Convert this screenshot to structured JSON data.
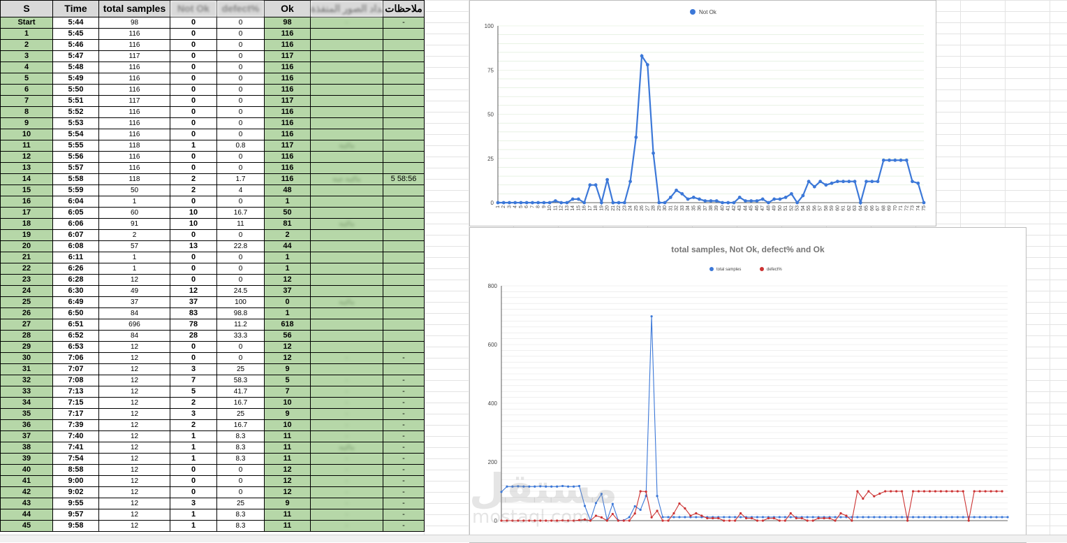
{
  "sheet": {
    "headers": [
      "S",
      "Time",
      "total samples",
      "Not Ok",
      "defect%",
      "Ok",
      "أعداد الصور المنفذة",
      "ملاحظات"
    ],
    "rows": [
      [
        "Start",
        "5:44",
        "98",
        "0",
        "0",
        "98",
        "-",
        "-"
      ],
      [
        "1",
        "5:45",
        "116",
        "0",
        "0",
        "116",
        "",
        ""
      ],
      [
        "2",
        "5:46",
        "116",
        "0",
        "0",
        "116",
        "",
        ""
      ],
      [
        "3",
        "5:47",
        "117",
        "0",
        "0",
        "117",
        "",
        ""
      ],
      [
        "4",
        "5:48",
        "116",
        "0",
        "0",
        "116",
        "",
        ""
      ],
      [
        "5",
        "5:49",
        "116",
        "0",
        "0",
        "116",
        "",
        ""
      ],
      [
        "6",
        "5:50",
        "116",
        "0",
        "0",
        "116",
        "",
        ""
      ],
      [
        "7",
        "5:51",
        "117",
        "0",
        "0",
        "117",
        "",
        ""
      ],
      [
        "8",
        "5:52",
        "116",
        "0",
        "0",
        "116",
        "",
        ""
      ],
      [
        "9",
        "5:53",
        "116",
        "0",
        "0",
        "116",
        "",
        ""
      ],
      [
        "10",
        "5:54",
        "116",
        "0",
        "0",
        "116",
        "",
        ""
      ],
      [
        "11",
        "5:55",
        "118",
        "1",
        "0.8",
        "117",
        "ماكينة",
        ""
      ],
      [
        "12",
        "5:56",
        "116",
        "0",
        "0",
        "116",
        "",
        ""
      ],
      [
        "13",
        "5:57",
        "116",
        "0",
        "0",
        "116",
        "",
        ""
      ],
      [
        "14",
        "5:58",
        "118",
        "2",
        "1.7",
        "116",
        "ماكينة عينة",
        "5 58:56"
      ],
      [
        "15",
        "5:59",
        "50",
        "2",
        "4",
        "48",
        "",
        ""
      ],
      [
        "16",
        "6:04",
        "1",
        "0",
        "0",
        "1",
        "",
        ""
      ],
      [
        "17",
        "6:05",
        "60",
        "10",
        "16.7",
        "50",
        "",
        ""
      ],
      [
        "18",
        "6:06",
        "91",
        "10",
        "11",
        "81",
        "ماكينة",
        ""
      ],
      [
        "19",
        "6:07",
        "2",
        "0",
        "0",
        "2",
        "",
        ""
      ],
      [
        "20",
        "6:08",
        "57",
        "13",
        "22.8",
        "44",
        "",
        ""
      ],
      [
        "21",
        "6:11",
        "1",
        "0",
        "0",
        "1",
        "",
        ""
      ],
      [
        "22",
        "6:26",
        "1",
        "0",
        "0",
        "1",
        "",
        ""
      ],
      [
        "23",
        "6:28",
        "12",
        "0",
        "0",
        "12",
        "",
        ""
      ],
      [
        "24",
        "6:30",
        "49",
        "12",
        "24.5",
        "37",
        "",
        ""
      ],
      [
        "25",
        "6:49",
        "37",
        "37",
        "100",
        "0",
        "ماكينة",
        ""
      ],
      [
        "26",
        "6:50",
        "84",
        "83",
        "98.8",
        "1",
        "",
        ""
      ],
      [
        "27",
        "6:51",
        "696",
        "78",
        "11.2",
        "618",
        "",
        ""
      ],
      [
        "28",
        "6:52",
        "84",
        "28",
        "33.3",
        "56",
        "",
        ""
      ],
      [
        "29",
        "6:53",
        "12",
        "0",
        "0",
        "12",
        "",
        ""
      ],
      [
        "30",
        "7:06",
        "12",
        "0",
        "0",
        "12",
        "-",
        "-"
      ],
      [
        "31",
        "7:07",
        "12",
        "3",
        "25",
        "9",
        "",
        ""
      ],
      [
        "32",
        "7:08",
        "12",
        "7",
        "58.3",
        "5",
        "-",
        "-"
      ],
      [
        "33",
        "7:13",
        "12",
        "5",
        "41.7",
        "7",
        "-",
        "-"
      ],
      [
        "34",
        "7:15",
        "12",
        "2",
        "16.7",
        "10",
        "-",
        "-"
      ],
      [
        "35",
        "7:17",
        "12",
        "3",
        "25",
        "9",
        "-",
        "-"
      ],
      [
        "36",
        "7:39",
        "12",
        "2",
        "16.7",
        "10",
        "-",
        "-"
      ],
      [
        "37",
        "7:40",
        "12",
        "1",
        "8.3",
        "11",
        "-",
        "-"
      ],
      [
        "38",
        "7:41",
        "12",
        "1",
        "8.3",
        "11",
        "ماكينة",
        "-"
      ],
      [
        "39",
        "7:54",
        "12",
        "1",
        "8.3",
        "11",
        "-",
        "-"
      ],
      [
        "40",
        "8:58",
        "12",
        "0",
        "0",
        "12",
        "-",
        "-"
      ],
      [
        "41",
        "9:00",
        "12",
        "0",
        "0",
        "12",
        "-",
        "-"
      ],
      [
        "42",
        "9:02",
        "12",
        "0",
        "0",
        "12",
        "-",
        "-"
      ],
      [
        "43",
        "9:55",
        "12",
        "3",
        "25",
        "9",
        "-",
        "-"
      ],
      [
        "44",
        "9:57",
        "12",
        "1",
        "8.3",
        "11",
        "-",
        "-"
      ],
      [
        "45",
        "9:58",
        "12",
        "1",
        "8.3",
        "11",
        "-",
        "-"
      ]
    ]
  },
  "chart_data": [
    {
      "type": "line",
      "title": "",
      "legend": [
        "Not Ok"
      ],
      "legend_position": "top",
      "ylim": [
        0,
        100
      ],
      "yticks": [
        0,
        25,
        50,
        75,
        100
      ],
      "x": [
        1,
        2,
        3,
        4,
        5,
        6,
        7,
        8,
        9,
        10,
        11,
        12,
        13,
        14,
        15,
        16,
        17,
        18,
        19,
        20,
        21,
        22,
        23,
        24,
        25,
        26,
        27,
        28,
        29,
        30,
        31,
        32,
        33,
        34,
        35,
        36,
        37,
        38,
        39,
        40,
        41,
        42,
        43,
        44,
        45,
        46,
        47,
        48,
        49,
        50,
        51,
        52,
        53,
        54,
        55,
        56,
        57,
        58,
        59,
        60,
        61,
        62,
        63,
        64,
        65,
        66,
        67,
        68,
        69,
        70,
        71,
        72,
        73,
        74,
        75
      ],
      "series": [
        {
          "name": "Not Ok",
          "color": "#3c78d8",
          "values": [
            0,
            0,
            0,
            0,
            0,
            0,
            0,
            0,
            0,
            0,
            1,
            0,
            0,
            2,
            2,
            0,
            10,
            10,
            0,
            13,
            0,
            0,
            0,
            12,
            37,
            83,
            78,
            28,
            0,
            0,
            3,
            7,
            5,
            2,
            3,
            2,
            1,
            1,
            1,
            0,
            0,
            0,
            3,
            1,
            1,
            1,
            2,
            0,
            2,
            2,
            3,
            5,
            0,
            4,
            12,
            9,
            12,
            10,
            11,
            12,
            12,
            12,
            12,
            0,
            12,
            12,
            12,
            24,
            24,
            24,
            24,
            24,
            12,
            11,
            0
          ]
        }
      ],
      "grid": true
    },
    {
      "type": "line",
      "title": "total samples, Not Ok, defect% and Ok",
      "legend": [
        "total samples",
        "defect%"
      ],
      "legend_position": "top",
      "ylim": [
        0,
        800
      ],
      "yticks": [
        0,
        200,
        400,
        600,
        800
      ],
      "series": [
        {
          "name": "total samples",
          "color": "#3c78d8",
          "values": [
            98,
            116,
            116,
            117,
            116,
            116,
            116,
            117,
            116,
            116,
            116,
            118,
            116,
            116,
            118,
            50,
            1,
            60,
            91,
            2,
            57,
            1,
            1,
            12,
            49,
            37,
            84,
            696,
            84,
            12,
            12,
            12,
            12,
            12,
            12,
            12,
            12,
            12,
            12,
            12,
            12,
            12,
            12,
            12,
            12,
            12,
            12,
            12,
            12,
            12,
            12,
            12,
            12,
            12,
            12,
            12,
            12,
            12,
            12,
            12,
            12,
            12,
            12,
            12,
            12,
            12,
            12,
            12,
            12,
            12,
            12,
            12,
            12,
            12,
            12,
            12,
            12,
            12,
            12,
            12,
            12,
            12,
            12,
            12,
            12,
            12,
            12,
            12,
            12,
            12,
            12,
            12
          ]
        },
        {
          "name": "defect%",
          "color": "#cc3333",
          "values": [
            0,
            0,
            0,
            0,
            0,
            0,
            0,
            0,
            0,
            0,
            0,
            0.8,
            0,
            0,
            1.7,
            4,
            0,
            16.7,
            11,
            0,
            22.8,
            0,
            0,
            0,
            24.5,
            100,
            98.8,
            11.2,
            33.3,
            0,
            0,
            25,
            58.3,
            41.7,
            16.7,
            25,
            16.7,
            8.3,
            8.3,
            8.3,
            0,
            0,
            0,
            25,
            8.3,
            8.3,
            0,
            0,
            8.3,
            8.3,
            0,
            0,
            25,
            8.3,
            8.3,
            0,
            0,
            8.3,
            8.3,
            8.3,
            0,
            25,
            16.7,
            0,
            100,
            75,
            100,
            83,
            92,
            100,
            100,
            100,
            100,
            0,
            100,
            100,
            100,
            100,
            100,
            100,
            100,
            100,
            100,
            100,
            0,
            100,
            100,
            100,
            100,
            100,
            100
          ]
        }
      ],
      "grid": true
    }
  ],
  "watermark": {
    "main": "مستقل",
    "sub": "mostaql.com"
  }
}
